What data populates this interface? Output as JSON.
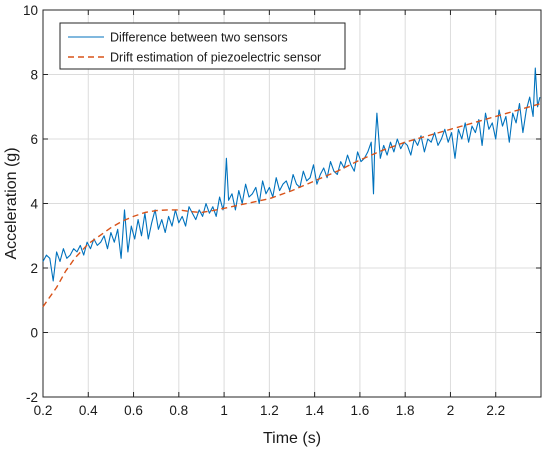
{
  "chart_data": {
    "type": "line",
    "title": "",
    "xlabel": "Time (s)",
    "ylabel": "Acceleration (g)",
    "xlim": [
      0.2,
      2.4
    ],
    "ylim": [
      -2,
      10
    ],
    "xticks": [
      0.2,
      0.4,
      0.6,
      0.8,
      1,
      1.2,
      1.4,
      1.6,
      1.8,
      2,
      2.2
    ],
    "yticks": [
      -2,
      0,
      2,
      4,
      6,
      8,
      10
    ],
    "xtick_labels": [
      "0.2",
      "0.4",
      "0.6",
      "0.8",
      "1",
      "1.2",
      "1.4",
      "1.6",
      "1.8",
      "2",
      "2.2"
    ],
    "ytick_labels": [
      "-2",
      "0",
      "2",
      "4",
      "6",
      "8",
      "10"
    ],
    "grid": true,
    "legend_position": "top-left",
    "series": [
      {
        "name": "Difference between two sensors",
        "color": "#0072BD",
        "style": "solid",
        "x": [
          0.2,
          0.215,
          0.23,
          0.245,
          0.26,
          0.275,
          0.29,
          0.305,
          0.32,
          0.335,
          0.35,
          0.365,
          0.38,
          0.395,
          0.41,
          0.425,
          0.44,
          0.455,
          0.47,
          0.485,
          0.5,
          0.515,
          0.53,
          0.545,
          0.56,
          0.575,
          0.59,
          0.605,
          0.62,
          0.635,
          0.65,
          0.665,
          0.68,
          0.695,
          0.71,
          0.725,
          0.74,
          0.755,
          0.77,
          0.785,
          0.8,
          0.815,
          0.83,
          0.845,
          0.86,
          0.875,
          0.89,
          0.905,
          0.92,
          0.935,
          0.95,
          0.965,
          0.98,
          0.995,
          1.0,
          1.01,
          1.02,
          1.035,
          1.05,
          1.065,
          1.08,
          1.095,
          1.11,
          1.125,
          1.14,
          1.155,
          1.17,
          1.185,
          1.2,
          1.215,
          1.23,
          1.245,
          1.26,
          1.275,
          1.29,
          1.305,
          1.32,
          1.335,
          1.35,
          1.365,
          1.38,
          1.395,
          1.41,
          1.425,
          1.44,
          1.455,
          1.47,
          1.485,
          1.5,
          1.515,
          1.53,
          1.545,
          1.56,
          1.575,
          1.59,
          1.605,
          1.62,
          1.635,
          1.65,
          1.66,
          1.665,
          1.675,
          1.69,
          1.705,
          1.72,
          1.735,
          1.75,
          1.765,
          1.78,
          1.795,
          1.81,
          1.825,
          1.84,
          1.855,
          1.87,
          1.885,
          1.9,
          1.915,
          1.93,
          1.945,
          1.96,
          1.975,
          1.99,
          2.005,
          2.02,
          2.035,
          2.05,
          2.065,
          2.08,
          2.095,
          2.11,
          2.125,
          2.14,
          2.155,
          2.17,
          2.185,
          2.2,
          2.215,
          2.23,
          2.245,
          2.26,
          2.275,
          2.29,
          2.305,
          2.32,
          2.335,
          2.35,
          2.365,
          2.375,
          2.385,
          2.395
        ],
        "y": [
          2.2,
          2.4,
          2.3,
          1.6,
          2.5,
          2.2,
          2.6,
          2.3,
          2.4,
          2.6,
          2.5,
          2.7,
          2.4,
          2.8,
          2.6,
          2.9,
          2.7,
          2.8,
          3.0,
          2.6,
          3.1,
          2.8,
          3.2,
          2.3,
          3.8,
          2.5,
          3.3,
          2.9,
          3.5,
          3.0,
          3.7,
          2.9,
          3.4,
          3.8,
          3.2,
          3.5,
          3.1,
          3.6,
          3.3,
          3.8,
          3.4,
          3.6,
          3.3,
          3.9,
          3.7,
          3.5,
          3.8,
          3.6,
          4.0,
          3.7,
          3.9,
          3.6,
          4.2,
          3.8,
          4.0,
          5.4,
          4.1,
          4.3,
          3.8,
          4.4,
          4.0,
          4.6,
          4.2,
          4.3,
          4.5,
          4.0,
          4.7,
          4.3,
          4.5,
          4.2,
          4.8,
          4.4,
          4.6,
          4.7,
          4.4,
          4.9,
          4.6,
          4.5,
          5.0,
          4.7,
          4.8,
          5.2,
          4.6,
          4.9,
          5.1,
          4.8,
          5.3,
          5.0,
          4.9,
          5.3,
          5.1,
          5.5,
          5.2,
          5.0,
          5.6,
          5.3,
          5.4,
          5.6,
          5.9,
          4.3,
          5.6,
          6.8,
          5.4,
          5.8,
          5.5,
          5.9,
          5.6,
          6.0,
          5.7,
          5.9,
          5.8,
          5.5,
          6.0,
          5.8,
          6.1,
          5.6,
          6.0,
          5.9,
          6.2,
          5.8,
          6.0,
          6.3,
          5.9,
          6.2,
          5.4,
          6.3,
          6.0,
          6.5,
          5.9,
          6.4,
          6.2,
          6.6,
          5.8,
          6.8,
          6.3,
          6.5,
          6.0,
          6.9,
          6.4,
          6.7,
          5.9,
          6.8,
          6.5,
          7.1,
          6.2,
          6.9,
          7.3,
          6.7,
          8.2,
          7.0,
          7.3
        ]
      },
      {
        "name": "Drift estimation of piezoelectric sensor",
        "color": "#D95319",
        "style": "dashed",
        "x": [
          0.2,
          0.22,
          0.24,
          0.26,
          0.28,
          0.3,
          0.32,
          0.34,
          0.36,
          0.38,
          0.4,
          0.45,
          0.5,
          0.55,
          0.6,
          0.65,
          0.7,
          0.75,
          0.8,
          0.85,
          0.9,
          0.95,
          1.0,
          1.1,
          1.2,
          1.3,
          1.4,
          1.5,
          1.6,
          1.7,
          1.8,
          1.9,
          2.0,
          2.1,
          2.2,
          2.3,
          2.4
        ],
        "y": [
          0.8,
          1.0,
          1.2,
          1.4,
          1.65,
          1.9,
          2.1,
          2.3,
          2.45,
          2.6,
          2.75,
          3.0,
          3.25,
          3.45,
          3.6,
          3.72,
          3.78,
          3.8,
          3.8,
          3.75,
          3.72,
          3.78,
          3.85,
          4.0,
          4.15,
          4.4,
          4.7,
          5.0,
          5.35,
          5.65,
          5.9,
          6.1,
          6.3,
          6.5,
          6.7,
          6.9,
          7.1
        ]
      }
    ]
  }
}
